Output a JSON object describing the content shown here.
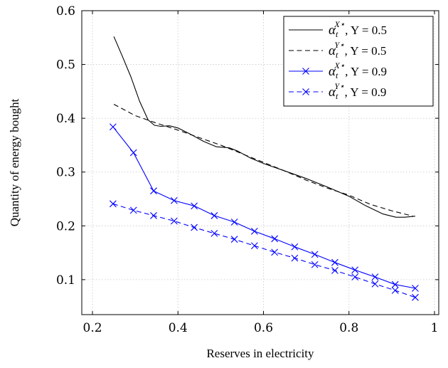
{
  "chart_data": {
    "type": "line",
    "xlabel": "Reserves in electricity",
    "ylabel": "Quantity of energy bought",
    "xlim": [
      0.175,
      1.01
    ],
    "ylim": [
      0.035,
      0.6
    ],
    "xticks": [
      0.2,
      0.4,
      0.6,
      0.8,
      1
    ],
    "xtick_labels": [
      "0.2",
      "0.4",
      "0.6",
      "0.8",
      "1"
    ],
    "yticks": [
      0.1,
      0.2,
      0.3,
      0.4,
      0.5,
      0.6
    ],
    "ytick_labels": [
      "0.1",
      "0.2",
      "0.3",
      "0.4",
      "0.5",
      "0.6"
    ],
    "grid": true,
    "legend_position": "top-right",
    "series": [
      {
        "name": "α_t^{X⋆}, Y = 0.5",
        "label_main": "α",
        "label_sub": "t",
        "label_sup": "X⋆",
        "label_tail": ", Y = 0.5",
        "color": "#000000",
        "dash": "solid",
        "marker": "none",
        "x": [
          0.25,
          0.27,
          0.29,
          0.31,
          0.33,
          0.345,
          0.36,
          0.38,
          0.4,
          0.43,
          0.46,
          0.49,
          0.52,
          0.54,
          0.57,
          0.6,
          0.65,
          0.7,
          0.75,
          0.8,
          0.84,
          0.88,
          0.91,
          0.93,
          0.955
        ],
        "y": [
          0.552,
          0.515,
          0.477,
          0.432,
          0.397,
          0.387,
          0.385,
          0.386,
          0.382,
          0.37,
          0.357,
          0.347,
          0.345,
          0.339,
          0.326,
          0.316,
          0.302,
          0.288,
          0.272,
          0.255,
          0.237,
          0.222,
          0.216,
          0.216,
          0.218
        ]
      },
      {
        "name": "α_t^{Y⋆}, Y = 0.5",
        "label_main": "α",
        "label_sub": "t",
        "label_sup": "Y⋆",
        "label_tail": ", Y = 0.5",
        "color": "#000000",
        "dash": "dashed",
        "marker": "none",
        "x": [
          0.25,
          0.3,
          0.35,
          0.4,
          0.45,
          0.5,
          0.55,
          0.6,
          0.65,
          0.7,
          0.75,
          0.8,
          0.85,
          0.9,
          0.95
        ],
        "y": [
          0.426,
          0.405,
          0.391,
          0.378,
          0.364,
          0.35,
          0.334,
          0.318,
          0.302,
          0.285,
          0.27,
          0.257,
          0.24,
          0.228,
          0.218
        ]
      },
      {
        "name": "α_t^{X⋆}, Y = 0.9",
        "label_main": "α",
        "label_sub": "t",
        "label_sup": "X⋆",
        "label_tail": ", Y = 0.9",
        "color": "#0000ff",
        "dash": "solid",
        "marker": "x",
        "x": [
          0.248,
          0.296,
          0.343,
          0.391,
          0.438,
          0.485,
          0.532,
          0.579,
          0.626,
          0.673,
          0.72,
          0.767,
          0.814,
          0.861,
          0.908,
          0.955
        ],
        "y": [
          0.384,
          0.336,
          0.265,
          0.247,
          0.237,
          0.219,
          0.207,
          0.19,
          0.176,
          0.161,
          0.147,
          0.132,
          0.118,
          0.105,
          0.091,
          0.084
        ]
      },
      {
        "name": "α_t^{Y⋆}, Y = 0.9",
        "label_main": "α",
        "label_sub": "t",
        "label_sup": "Y⋆",
        "label_tail": ", Y = 0.9",
        "color": "#0000ff",
        "dash": "dashed",
        "marker": "x",
        "x": [
          0.248,
          0.296,
          0.343,
          0.391,
          0.438,
          0.485,
          0.532,
          0.579,
          0.626,
          0.673,
          0.72,
          0.767,
          0.814,
          0.861,
          0.908,
          0.955
        ],
        "y": [
          0.241,
          0.229,
          0.219,
          0.209,
          0.197,
          0.186,
          0.175,
          0.163,
          0.151,
          0.14,
          0.128,
          0.117,
          0.105,
          0.092,
          0.08,
          0.067
        ]
      }
    ]
  }
}
